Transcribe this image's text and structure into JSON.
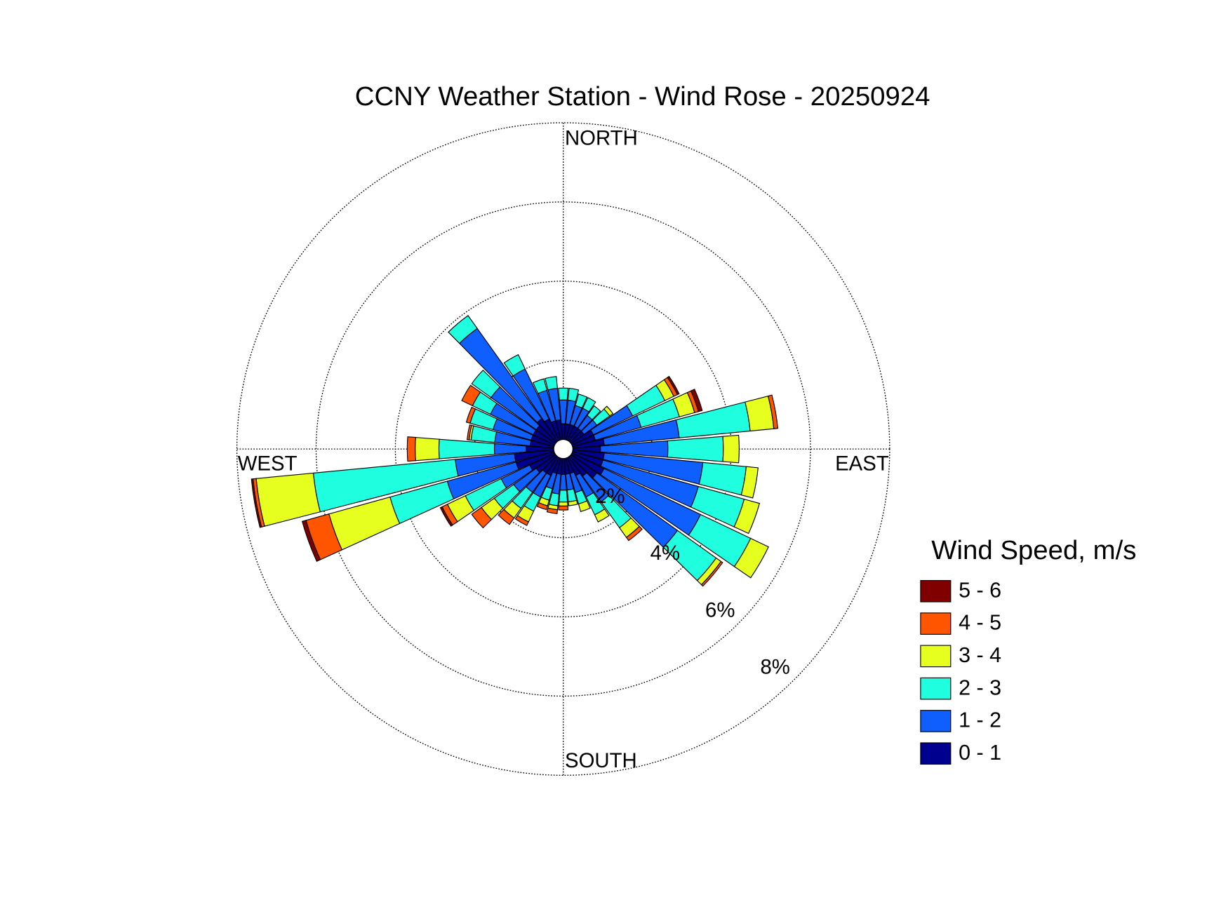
{
  "chart_data": {
    "type": "wind-rose",
    "title": "CCNY Weather Station - Wind Rose - 20250924",
    "direction_labels": {
      "north": "NORTH",
      "east": "EAST",
      "south": "SOUTH",
      "west": "WEST"
    },
    "x": [
      0,
      10,
      20,
      30,
      40,
      50,
      60,
      70,
      80,
      90,
      100,
      110,
      120,
      130,
      140,
      150,
      160,
      170,
      180,
      190,
      200,
      210,
      220,
      230,
      240,
      250,
      260,
      270,
      280,
      290,
      300,
      310,
      320,
      330,
      340,
      350
    ],
    "series": [
      {
        "name": "0 - 1",
        "color": "#00008f",
        "values": [
          0.4,
          0.4,
          0.4,
          0.4,
          0.4,
          0.4,
          0.6,
          0.6,
          0.8,
          0.7,
          0.8,
          0.8,
          0.9,
          0.8,
          0.6,
          0.5,
          0.4,
          0.4,
          0.4,
          0.4,
          0.4,
          0.5,
          0.5,
          0.6,
          0.7,
          1.0,
          1.0,
          0.7,
          0.6,
          0.6,
          0.6,
          0.6,
          0.7,
          0.6,
          0.5,
          0.5
        ]
      },
      {
        "name": "1 - 2",
        "color": "#0f5fff",
        "values": [
          0.6,
          0.6,
          0.5,
          0.5,
          0.4,
          0.4,
          1.1,
          1.2,
          1.9,
          1.7,
          2.5,
          2.5,
          2.7,
          2.5,
          0.8,
          0.6,
          0.5,
          0.4,
          0.4,
          0.5,
          0.4,
          0.6,
          0.6,
          0.7,
          0.8,
          1.8,
          1.5,
          0.8,
          0.9,
          1.0,
          1.2,
          1.4,
          2.8,
          1.4,
          0.8,
          0.8
        ]
      },
      {
        "name": "2 - 3",
        "color": "#1fffe0",
        "values": [
          0.3,
          0.3,
          0.3,
          0.3,
          0.3,
          0.4,
          0.9,
          1.0,
          1.8,
          1.4,
          1.1,
          1.2,
          1.4,
          1.2,
          0.8,
          0.5,
          0.3,
          0.3,
          0.3,
          0.3,
          0.3,
          0.4,
          0.5,
          0.6,
          1.0,
          1.5,
          3.6,
          1.4,
          0.6,
          0.6,
          0.5,
          0.6,
          0.4,
          0.4,
          0.3,
          0.3
        ]
      },
      {
        "name": "3 - 4",
        "color": "#e6ff1f",
        "values": [
          0,
          0,
          0,
          0,
          0,
          0.1,
          0.25,
          0.4,
          0.6,
          0.4,
          0.3,
          0.4,
          0.5,
          0.15,
          0.3,
          0.2,
          0.2,
          0.1,
          0.1,
          0.1,
          0.15,
          0.3,
          0.3,
          0.4,
          0.5,
          1.6,
          1.45,
          0.6,
          0.05,
          0,
          0,
          0,
          0,
          0,
          0,
          0
        ]
      },
      {
        "name": "4 - 5",
        "color": "#ff5500",
        "values": [
          0,
          0,
          0,
          0,
          0,
          0,
          0.1,
          0.1,
          0.1,
          0,
          0,
          0,
          0,
          0.05,
          0.1,
          0,
          0,
          0,
          0.1,
          0.1,
          0.1,
          0.1,
          0.2,
          0.3,
          0.15,
          0.6,
          0.08,
          0.2,
          0.05,
          0.1,
          0.3,
          0,
          0,
          0,
          0,
          0
        ]
      },
      {
        "name": "5 - 6",
        "color": "#800000",
        "values": [
          0,
          0,
          0,
          0,
          0,
          0,
          0.05,
          0.1,
          0,
          0,
          0,
          0,
          0,
          0,
          0,
          0,
          0,
          0,
          0,
          0,
          0,
          0,
          0,
          0,
          0.05,
          0.1,
          0.04,
          0,
          0,
          0,
          0,
          0,
          0,
          0,
          0,
          0
        ]
      }
    ],
    "rlim": [
      0,
      8
    ],
    "rticks": [
      {
        "value": 2,
        "label": "2%"
      },
      {
        "value": 4,
        "label": "4%"
      },
      {
        "value": 6,
        "label": "6%"
      },
      {
        "value": 8,
        "label": "8%"
      }
    ],
    "grid": true,
    "legend": "right",
    "legend_title": "Wind Speed, m/s"
  }
}
